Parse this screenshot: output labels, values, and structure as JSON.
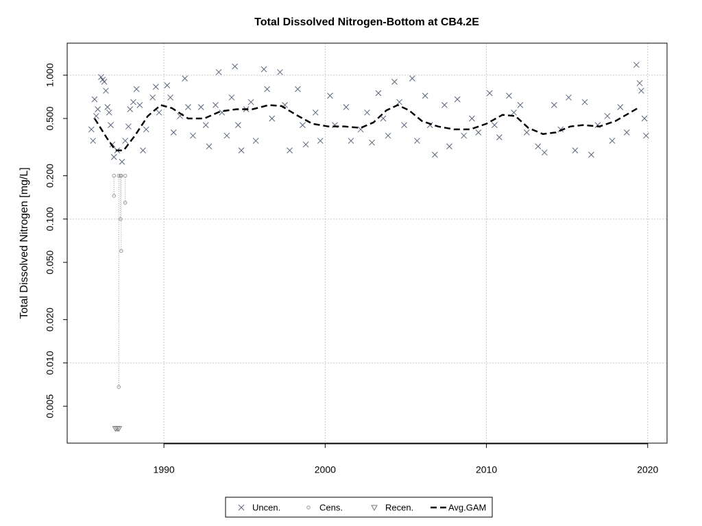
{
  "chart_data": {
    "type": "scatter",
    "title": "Total Dissolved Nitrogen-Bottom at CB4.2E",
    "y_label": "Total Dissolved Nitrogen [mg/L]",
    "log_y": true,
    "xlim": [
      1984.0,
      2021.2
    ],
    "ylim": [
      0.00277,
      1.67
    ],
    "xticks": [
      1990,
      2000,
      2010,
      2020
    ],
    "yticks": [
      0.005,
      {
        "value": 0.01,
        "label": "0.010"
      },
      {
        "value": 0.02,
        "label": "0.020"
      },
      {
        "value": 0.05,
        "label": "0.050"
      },
      {
        "value": 0.1,
        "label": "0.100"
      },
      {
        "value": 0.2,
        "label": "0.200"
      },
      {
        "value": 0.5,
        "label": "0.500"
      },
      {
        "value": 1,
        "label": "1.000"
      }
    ],
    "ygrid": [
      0.01,
      0.1,
      1
    ],
    "grid": true,
    "legend": "bottom",
    "series": [
      {
        "name": "Uncen.",
        "color": "#56627a",
        "x": [
          1985.5,
          1985.6,
          1985.7,
          1985.8,
          1985.9,
          1986.1,
          1986.2,
          1986.3,
          1986.4,
          1986.5,
          1986.6,
          1986.7,
          1986.8,
          1986.9,
          1987.1,
          1987.4,
          1987.6,
          1987.8,
          1987.9,
          1988.1,
          1988.3,
          1988.5,
          1988.7,
          1988.9,
          1989.3,
          1989.5,
          1989.7,
          1990.2,
          1990.4,
          1990.6,
          1991.0,
          1991.3,
          1991.5,
          1991.8,
          1992.3,
          1992.6,
          1992.8,
          1993.2,
          1993.4,
          1993.6,
          1993.9,
          1994.2,
          1994.4,
          1994.6,
          1994.8,
          1995.1,
          1995.4,
          1995.7,
          1996.2,
          1996.4,
          1996.7,
          1997.2,
          1997.5,
          1997.8,
          1998.3,
          1998.6,
          1998.8,
          1999.4,
          1999.7,
          2000.3,
          2000.6,
          2001.3,
          2001.6,
          2002.2,
          2002.6,
          2002.9,
          2003.3,
          2003.6,
          2003.9,
          2004.3,
          2004.6,
          2004.9,
          2005.4,
          2005.7,
          2006.2,
          2006.5,
          2006.8,
          2007.4,
          2007.7,
          2008.2,
          2008.6,
          2009.1,
          2009.5,
          2010.2,
          2010.5,
          2010.8,
          2011.4,
          2011.7,
          2012.1,
          2012.5,
          2013.2,
          2013.6,
          2014.2,
          2014.6,
          2015.1,
          2015.5,
          2016.1,
          2016.5,
          2016.9,
          2017.5,
          2017.8,
          2018.3,
          2018.7,
          2019.3,
          2019.5,
          2019.6,
          2019.8,
          2019.9
        ],
        "values": [
          0.42,
          0.35,
          0.68,
          0.52,
          0.58,
          0.97,
          0.93,
          0.9,
          0.78,
          0.6,
          0.55,
          0.45,
          0.33,
          0.27,
          0.3,
          0.25,
          0.35,
          0.44,
          0.58,
          0.65,
          0.8,
          0.62,
          0.3,
          0.42,
          0.7,
          0.83,
          0.55,
          0.85,
          0.7,
          0.4,
          0.52,
          0.95,
          0.6,
          0.38,
          0.6,
          0.45,
          0.32,
          0.62,
          1.05,
          0.55,
          0.38,
          0.7,
          1.15,
          0.45,
          0.3,
          0.58,
          0.65,
          0.35,
          1.1,
          0.8,
          0.5,
          1.05,
          0.62,
          0.3,
          0.8,
          0.45,
          0.33,
          0.55,
          0.35,
          0.72,
          0.45,
          0.6,
          0.35,
          0.42,
          0.55,
          0.34,
          0.75,
          0.5,
          0.38,
          0.9,
          0.65,
          0.45,
          0.95,
          0.35,
          0.72,
          0.45,
          0.28,
          0.62,
          0.32,
          0.68,
          0.38,
          0.5,
          0.4,
          0.75,
          0.45,
          0.37,
          0.72,
          0.55,
          0.62,
          0.4,
          0.32,
          0.29,
          0.62,
          0.42,
          0.7,
          0.3,
          0.65,
          0.28,
          0.45,
          0.52,
          0.35,
          0.6,
          0.4,
          1.18,
          0.88,
          0.78,
          0.5,
          0.38
        ]
      },
      {
        "name": "Cens.",
        "color": "#999999",
        "x": [
          1986.9,
          1987.2,
          1987.3,
          1987.35,
          1987.6
        ],
        "lower": [
          0.145,
          0.0068,
          0.1,
          0.06,
          0.13
        ],
        "upper": [
          0.2,
          0.2,
          0.2,
          0.2,
          0.2
        ]
      },
      {
        "name": "Recen.",
        "color": "#777777",
        "x": [
          1987.0,
          1987.1,
          1987.2
        ],
        "values": [
          0.0035,
          0.0035,
          0.0035
        ]
      },
      {
        "name": "Avg.GAM",
        "color": "#000000",
        "x": [
          1985.7,
          1986.5,
          1987.0,
          1987.5,
          1988.2,
          1989,
          1989.8,
          1990.5,
          1991.5,
          1992.5,
          1993.5,
          1994.5,
          1995.5,
          1996.5,
          1997.3,
          1998.2,
          1999.2,
          2000.2,
          2001.2,
          2002.2,
          2003,
          2003.8,
          2004.5,
          2005.2,
          2006,
          2007,
          2008,
          2009,
          2010,
          2011,
          2011.8,
          2012.6,
          2013.5,
          2014.3,
          2015.2,
          2016,
          2017,
          2018,
          2019.5
        ],
        "values": [
          0.5,
          0.36,
          0.3,
          0.3,
          0.38,
          0.52,
          0.62,
          0.59,
          0.5,
          0.5,
          0.56,
          0.58,
          0.58,
          0.62,
          0.61,
          0.53,
          0.46,
          0.44,
          0.44,
          0.43,
          0.47,
          0.57,
          0.62,
          0.57,
          0.48,
          0.44,
          0.42,
          0.42,
          0.46,
          0.53,
          0.52,
          0.43,
          0.39,
          0.4,
          0.44,
          0.45,
          0.44,
          0.48,
          0.6
        ]
      }
    ]
  }
}
